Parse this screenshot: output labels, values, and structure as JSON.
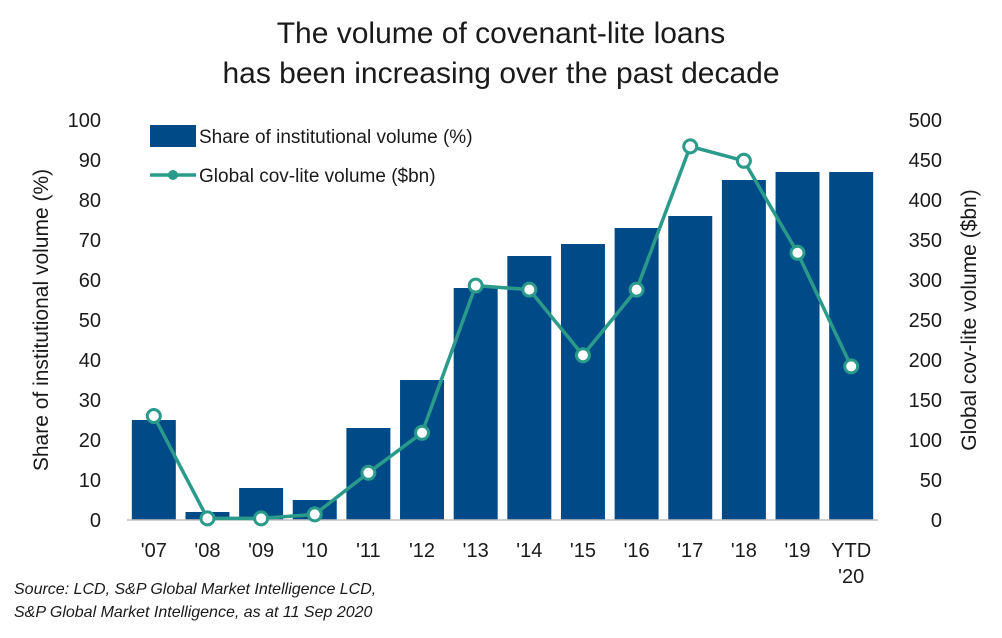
{
  "chart_data": {
    "type": "bar",
    "title": [
      "The volume of covenant-lite loans",
      "has been increasing over the past decade"
    ],
    "categories": [
      [
        "'07"
      ],
      [
        "'08"
      ],
      [
        "'09"
      ],
      [
        "'10"
      ],
      [
        "'11"
      ],
      [
        "'12"
      ],
      [
        "'13"
      ],
      [
        "'14"
      ],
      [
        "'15"
      ],
      [
        "'16"
      ],
      [
        "'17"
      ],
      [
        "'18"
      ],
      [
        "'19"
      ],
      [
        "YTD",
        "'20"
      ]
    ],
    "series": [
      {
        "name": "Share of institutional volume (%)",
        "type": "bar",
        "axis": "left",
        "color": "#004b87",
        "values": [
          25,
          2,
          8,
          5,
          23,
          35,
          58,
          66,
          69,
          73,
          76,
          85,
          87,
          87
        ]
      },
      {
        "name": "Global cov-lite volume ($bn)",
        "type": "line",
        "axis": "right",
        "color": "#2a9a8a",
        "values": [
          130,
          2,
          2,
          7,
          59,
          109,
          293,
          288,
          206,
          288,
          467,
          449,
          334,
          192
        ]
      }
    ],
    "ylabel": "Share of institutional volume (%)",
    "y2label": "Global cov-lite volume ($bn)",
    "ylim": [
      0,
      100
    ],
    "y2lim": [
      0,
      500
    ],
    "yticks": [
      "0",
      "10",
      "20",
      "30",
      "40",
      "50",
      "60",
      "70",
      "80",
      "90",
      "100"
    ],
    "y2ticks": [
      "0",
      "50",
      "100",
      "150",
      "200",
      "250",
      "300",
      "350",
      "400",
      "450",
      "500"
    ],
    "grid": false,
    "legend": "top-left"
  },
  "source": [
    "Source: LCD, S&P Global Market Intelligence LCD,",
    "S&P Global Market Intelligence, as at 11 Sep 2020"
  ]
}
